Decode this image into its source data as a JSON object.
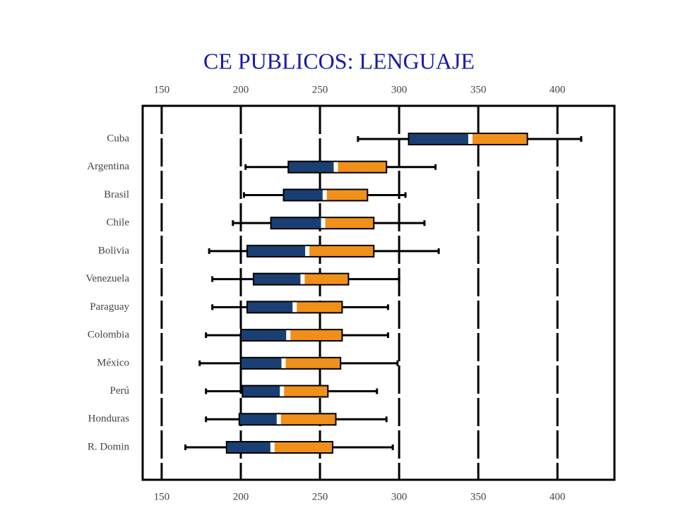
{
  "chart_data": {
    "type": "box",
    "title": "CE PUBLICOS: LENGUAJE",
    "categories": [
      "Cuba",
      "Argentina",
      "Brasil",
      "Chile",
      "Bolivia",
      "Venezuela",
      "Paraguay",
      "Colombia",
      "México",
      "Perú",
      "Honduras",
      "R. Domin"
    ],
    "whisker_low": [
      274,
      203,
      202,
      195,
      180,
      182,
      182,
      178,
      174,
      178,
      178,
      165
    ],
    "q1": [
      306,
      230,
      227,
      219,
      204,
      208,
      204,
      200,
      200,
      201,
      199,
      191
    ],
    "median": [
      345,
      260,
      253,
      252,
      242,
      239,
      234,
      230,
      227,
      226,
      224,
      220
    ],
    "q3": [
      381,
      292,
      280,
      284,
      284,
      268,
      264,
      264,
      263,
      255,
      260,
      258
    ],
    "whisker_high": [
      415,
      323,
      304,
      316,
      325,
      300,
      293,
      293,
      299,
      286,
      292,
      296
    ],
    "lower_color": "#1a3f73",
    "upper_color": "#f0901a",
    "xlim": [
      138,
      436
    ],
    "xticks": [
      150,
      200,
      250,
      300,
      350,
      400
    ],
    "grid": true
  }
}
